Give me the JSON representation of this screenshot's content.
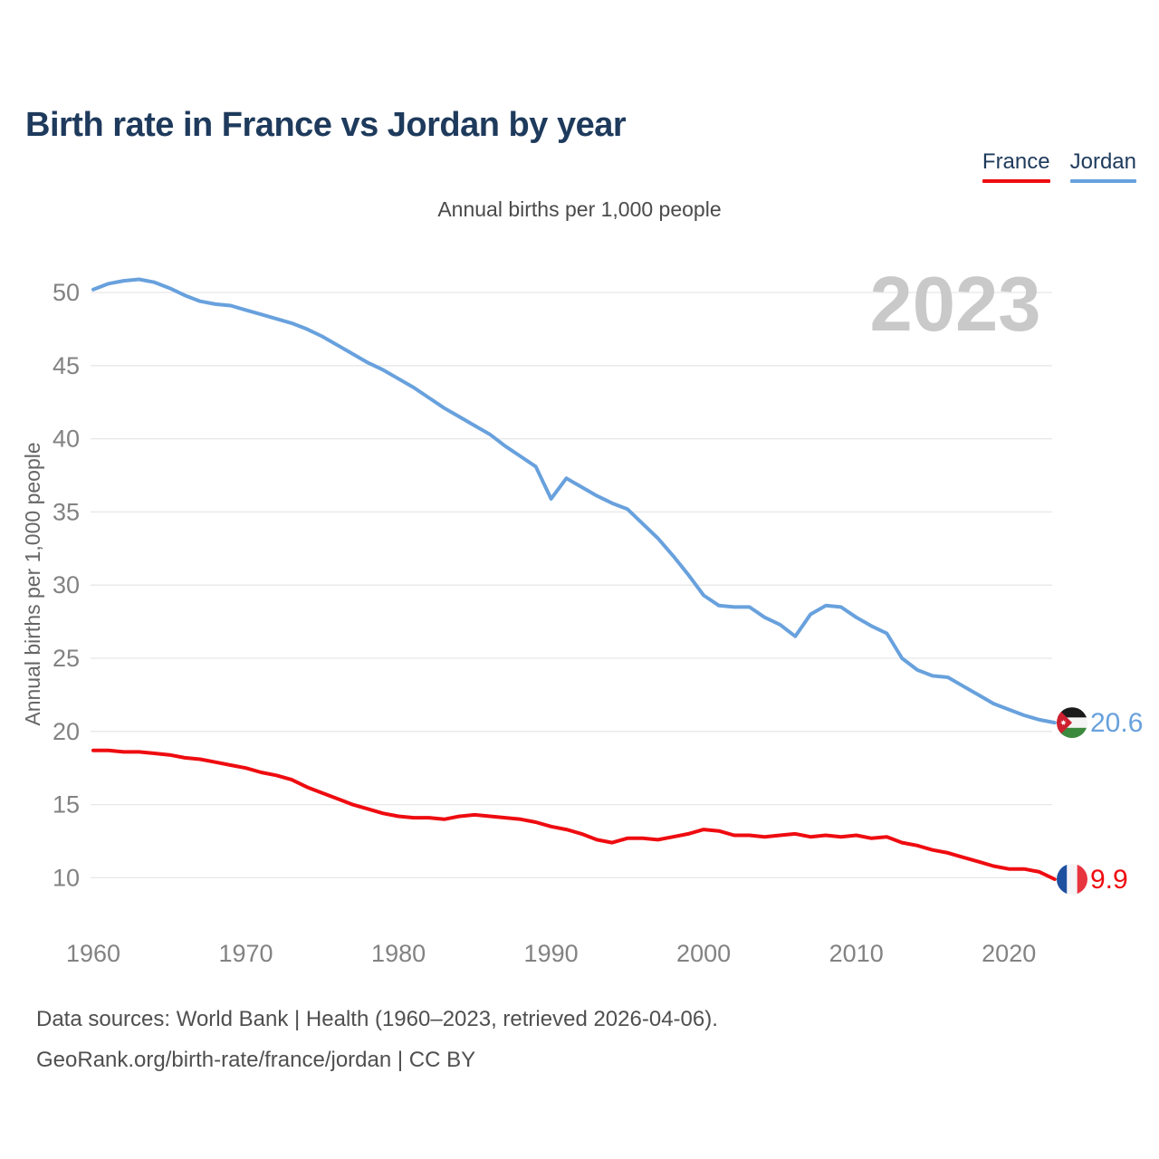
{
  "page": {
    "title": "Birth rate in France vs Jordan by year",
    "subtitle": "Annual births per 1,000 people",
    "watermark": "2023",
    "footer_line1": "Data sources: World Bank | Health (1960–2023, retrieved 2026-04-06).",
    "footer_line2": "GeoRank.org/birth-rate/france/jordan | CC BY"
  },
  "legend": {
    "items": [
      {
        "label": "France",
        "color": "#ee0c10"
      },
      {
        "label": "Jordan",
        "color": "#68a1dd"
      }
    ]
  },
  "chart_data": {
    "type": "line",
    "title": "Birth rate in France vs Jordan by year",
    "subtitle": "Annual births per 1,000 people",
    "ylabel": "Annual births per 1,000 people",
    "xlabel": "",
    "watermark": "2023",
    "grid": true,
    "legend_position": "top-right",
    "x_start": 1960,
    "x_end": 2023,
    "x_step": 1,
    "x_ticks": [
      1960,
      1970,
      1980,
      1990,
      2000,
      2010,
      2020
    ],
    "y_ticks": [
      10,
      15,
      20,
      25,
      30,
      35,
      40,
      45,
      50
    ],
    "ylim": [
      8.5,
      52
    ],
    "series": [
      {
        "name": "France",
        "color": "#ee0c10",
        "flag_icon": "france-flag",
        "end_label": "9.9",
        "end_value": 9.9,
        "values": [
          18.7,
          18.7,
          18.6,
          18.6,
          18.5,
          18.4,
          18.2,
          18.1,
          17.9,
          17.7,
          17.5,
          17.2,
          17.0,
          16.7,
          16.2,
          15.8,
          15.4,
          15.0,
          14.7,
          14.4,
          14.2,
          14.1,
          14.1,
          14.0,
          14.2,
          14.3,
          14.2,
          14.1,
          14.0,
          13.8,
          13.5,
          13.3,
          13.0,
          12.6,
          12.4,
          12.7,
          12.7,
          12.6,
          12.8,
          13.0,
          13.3,
          13.2,
          12.9,
          12.9,
          12.8,
          12.9,
          13.0,
          12.8,
          12.9,
          12.8,
          12.9,
          12.7,
          12.8,
          12.4,
          12.2,
          11.9,
          11.7,
          11.4,
          11.1,
          10.8,
          10.6,
          10.6,
          10.4,
          9.9
        ]
      },
      {
        "name": "Jordan",
        "color": "#68a1dd",
        "flag_icon": "jordan-flag",
        "end_label": "20.6",
        "end_value": 20.6,
        "values": [
          50.2,
          50.6,
          50.8,
          50.9,
          50.7,
          50.3,
          49.8,
          49.4,
          49.2,
          49.1,
          48.8,
          48.5,
          48.2,
          47.9,
          47.5,
          47.0,
          46.4,
          45.8,
          45.2,
          44.7,
          44.1,
          43.5,
          42.8,
          42.1,
          41.5,
          40.9,
          40.3,
          39.5,
          38.8,
          38.1,
          35.9,
          37.3,
          36.7,
          36.1,
          35.6,
          35.2,
          34.2,
          33.2,
          32.0,
          30.7,
          29.3,
          28.6,
          28.5,
          28.5,
          27.8,
          27.3,
          26.5,
          28.0,
          28.6,
          28.5,
          27.8,
          27.2,
          26.7,
          25.0,
          24.2,
          23.8,
          23.7,
          23.1,
          22.5,
          21.9,
          21.5,
          21.1,
          20.8,
          20.6
        ]
      }
    ]
  }
}
